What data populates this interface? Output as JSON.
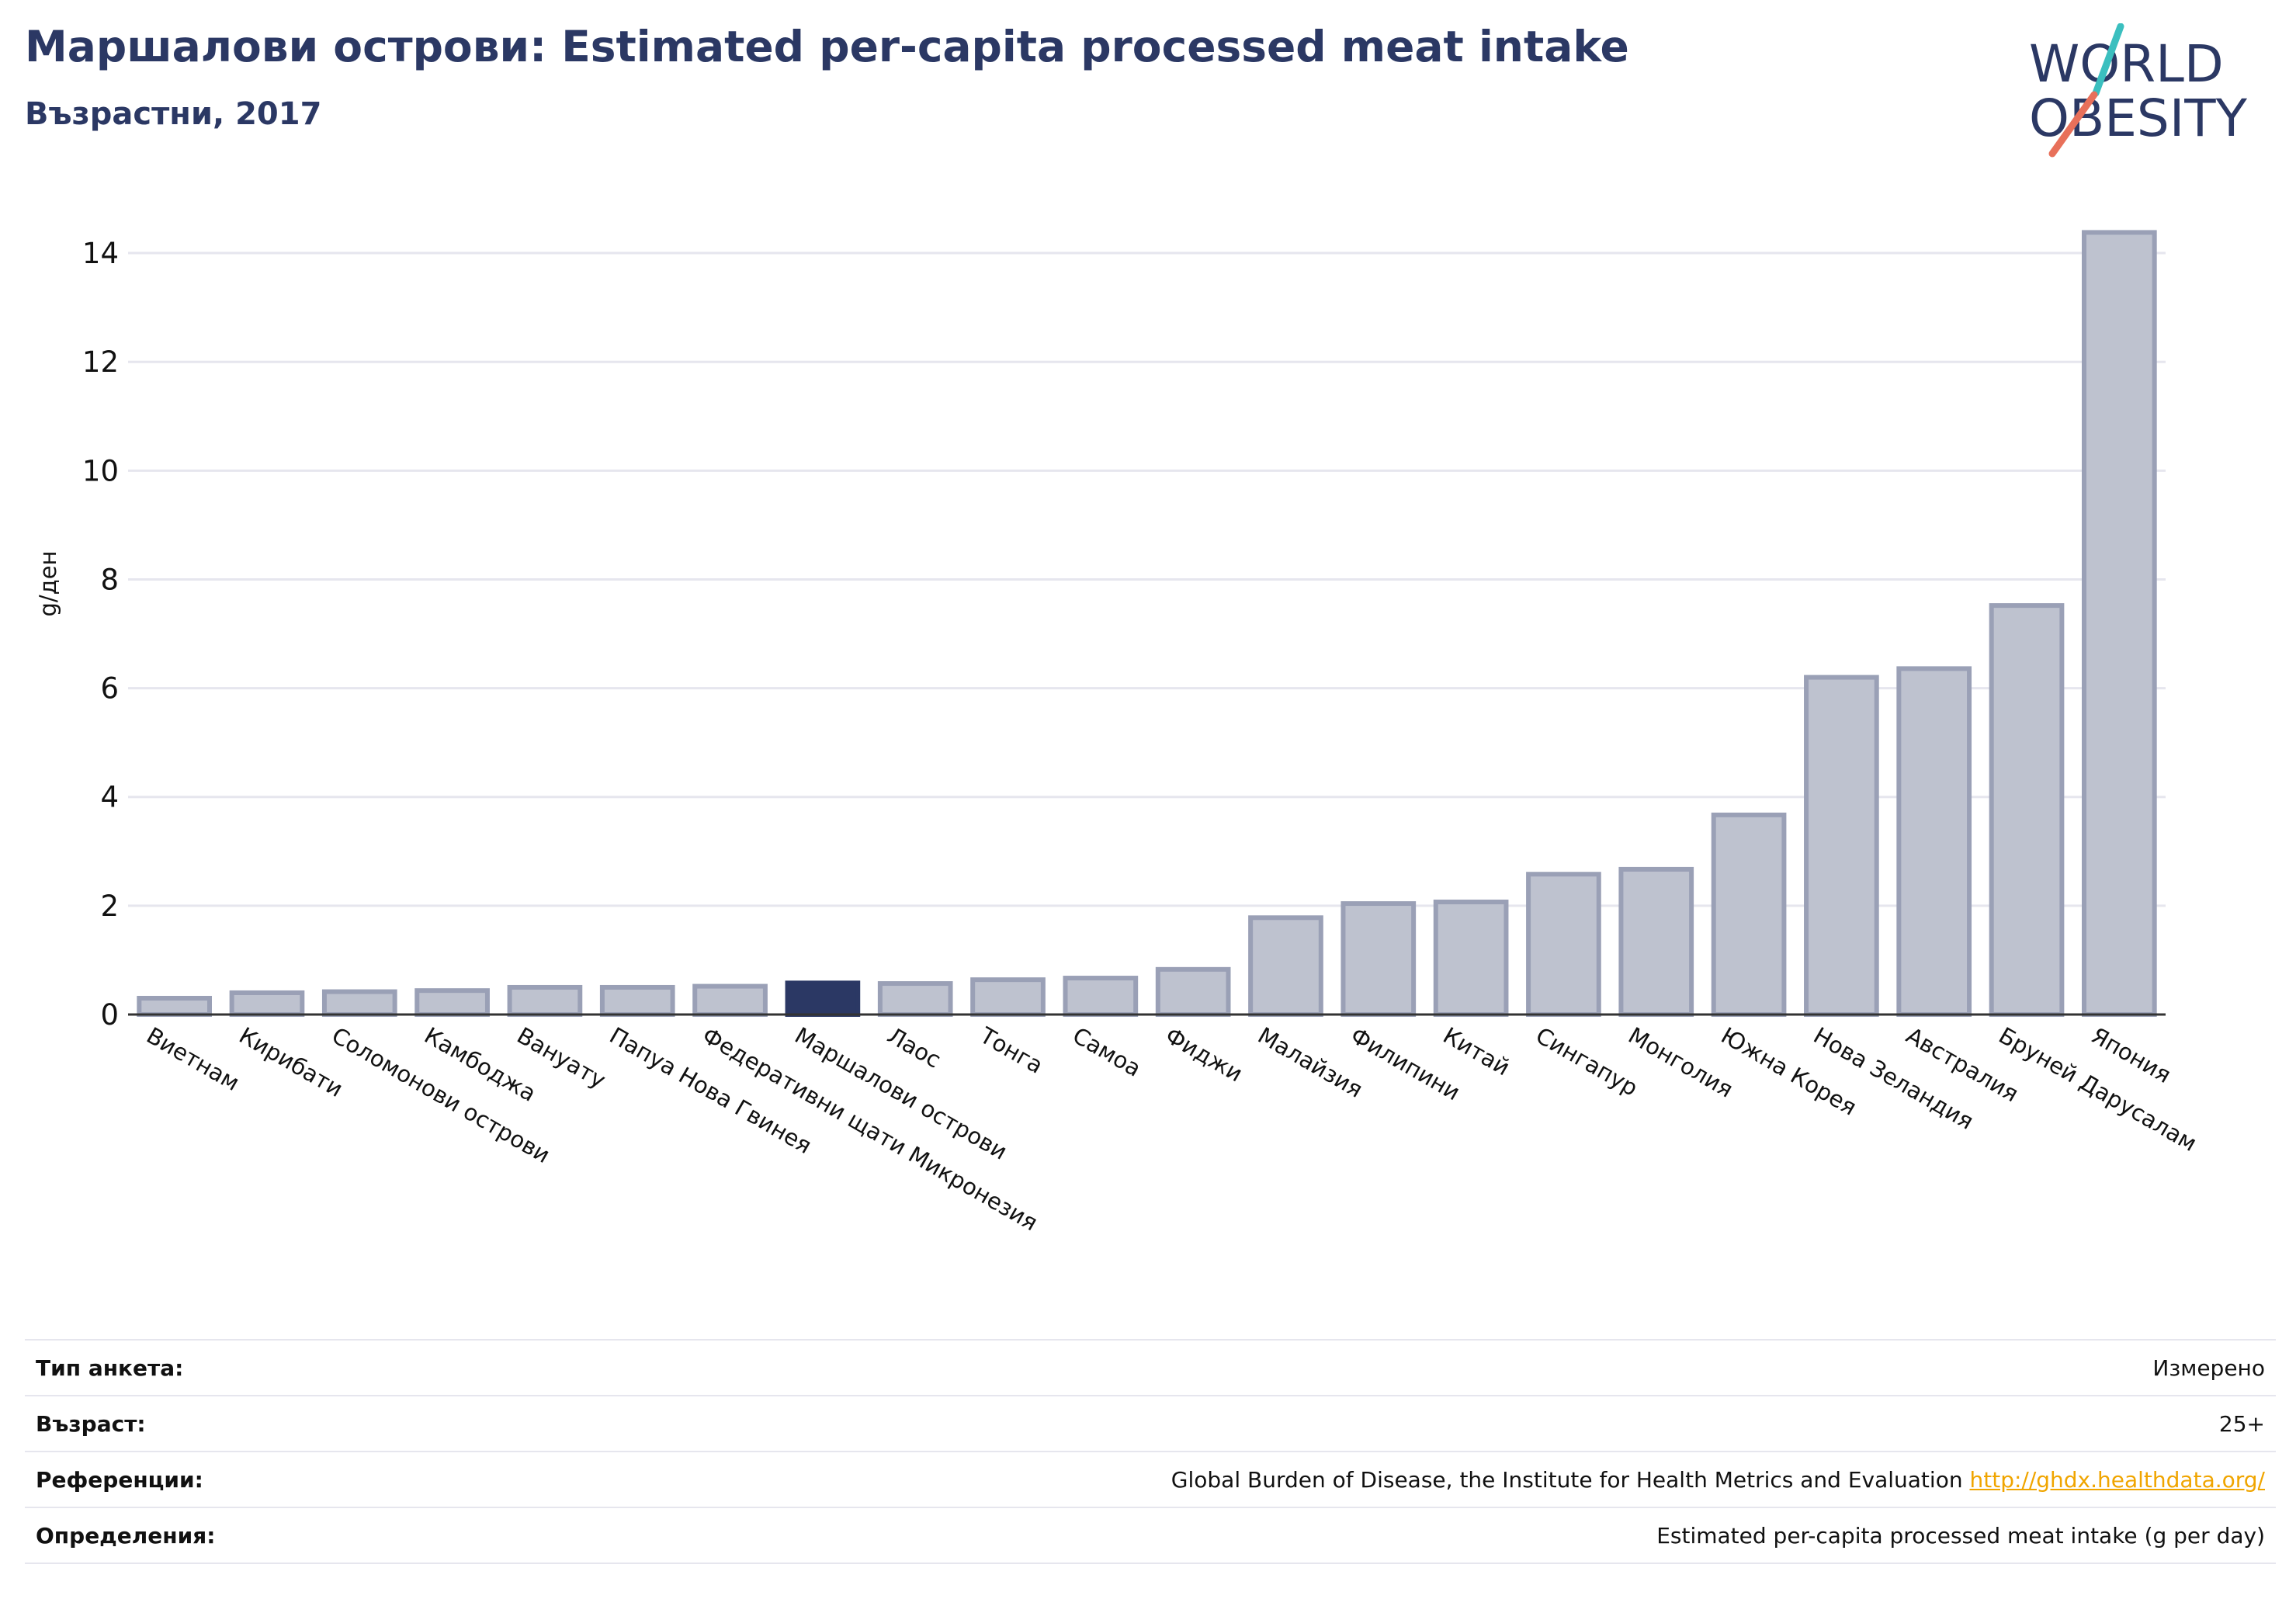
{
  "header": {
    "title": "Маршалови острови: Estimated per-capita processed meat intake",
    "subtitle": "Възрастни, 2017"
  },
  "logo": {
    "line1": "WORLD",
    "line2": "OBESITY",
    "accent_teal": "#3bbfbf",
    "accent_coral": "#e8705a",
    "text_color": "#2b3864"
  },
  "colors": {
    "bar": "#bec2cf",
    "bar_border": "#9aa0b6",
    "highlight": "#2b3864",
    "grid": "#e6e6ee",
    "axis": "#333333"
  },
  "chart_data": {
    "type": "bar",
    "title": "",
    "xlabel": "",
    "ylabel": "g/ден",
    "ylim": [
      0,
      14.8
    ],
    "yticks": [
      0,
      2,
      4,
      6,
      8,
      10,
      12,
      14
    ],
    "grid": true,
    "highlight": "Маршалови острови",
    "categories": [
      "Виетнам",
      "Кирибати",
      "Соломонови острови",
      "Камбоджа",
      "Вануату",
      "Папуа Нова Гвинея",
      "Федеративни щати Микронезия",
      "Маршалови острови",
      "Лаос",
      "Тонга",
      "Самоа",
      "Фиджи",
      "Малайзия",
      "Филипини",
      "Китай",
      "Сингапур",
      "Монголия",
      "Южна Корея",
      "Нова Зеландия",
      "Австралия",
      "Бруней Дарусалам",
      "Япония"
    ],
    "values": [
      0.3,
      0.4,
      0.42,
      0.44,
      0.5,
      0.5,
      0.52,
      0.58,
      0.57,
      0.64,
      0.67,
      0.83,
      1.78,
      2.04,
      2.07,
      2.58,
      2.67,
      3.67,
      6.2,
      6.36,
      7.52,
      14.38
    ]
  },
  "metadata": {
    "rows": [
      {
        "key": "Тип анкета:",
        "value": "Измерено"
      },
      {
        "key": "Възраст:",
        "value": "25+"
      },
      {
        "key": "Референции:",
        "value": "Global Burden of Disease, the Institute for Health Metrics and Evaluation",
        "link": "http://ghdx.healthdata.org/"
      },
      {
        "key": "Определения:",
        "value": "Estimated per-capita processed meat intake (g per day)"
      }
    ]
  }
}
